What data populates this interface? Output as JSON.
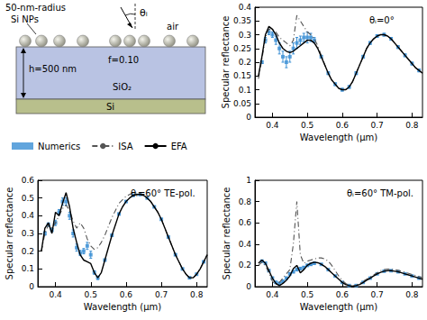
{
  "diagram": {
    "np_label": "50-nm-radius",
    "np_label2": "Si NPs",
    "angle": "θᵢ",
    "medium": "air",
    "thickness": "h=500 nm",
    "fill_fraction": "f=0.10",
    "layer": "SiO₂",
    "substrate": "Si"
  },
  "chart_data": [
    {
      "type": "line",
      "title": "θᵢ=0°",
      "xlabel": "Wavelength (μm)",
      "ylabel": "Specular reflectance",
      "legend": "left",
      "grid": false,
      "x": [
        0.36,
        0.37,
        0.38,
        0.39,
        0.4,
        0.41,
        0.42,
        0.43,
        0.44,
        0.45,
        0.46,
        0.47,
        0.48,
        0.49,
        0.5,
        0.51,
        0.52,
        0.53,
        0.54,
        0.55,
        0.56,
        0.57,
        0.58,
        0.59,
        0.6,
        0.61,
        0.62,
        0.63,
        0.64,
        0.65,
        0.66,
        0.67,
        0.68,
        0.69,
        0.7,
        0.71,
        0.72,
        0.73,
        0.74,
        0.75,
        0.76,
        0.77,
        0.78,
        0.79,
        0.8,
        0.81,
        0.82,
        0.83
      ],
      "xlim": [
        0.35,
        0.83
      ],
      "xticks": [
        0.4,
        0.5,
        0.6,
        0.7,
        0.8
      ],
      "ylim": [
        0,
        0.4
      ],
      "yticks": [
        0,
        0.05,
        0.1,
        0.15,
        0.2,
        0.25,
        0.3,
        0.35,
        0.4
      ],
      "series": [
        {
          "name": "Numerics",
          "type": "scatter",
          "marker": "square",
          "color": "#3a8fd4",
          "x": [
            0.37,
            0.38,
            0.39,
            0.4,
            0.41,
            0.42,
            0.43,
            0.44,
            0.45,
            0.46,
            0.47,
            0.48,
            0.49,
            0.5,
            0.51,
            0.52,
            0.54,
            0.56,
            0.58,
            0.6,
            0.62,
            0.64,
            0.66,
            0.68,
            0.7,
            0.72,
            0.74,
            0.76,
            0.78,
            0.8,
            0.82
          ],
          "values": [
            0.2,
            0.28,
            0.31,
            0.3,
            0.28,
            0.25,
            0.22,
            0.2,
            0.22,
            0.25,
            0.27,
            0.28,
            0.29,
            0.29,
            0.29,
            0.28,
            0.22,
            0.16,
            0.12,
            0.1,
            0.11,
            0.16,
            0.22,
            0.27,
            0.295,
            0.3,
            0.285,
            0.255,
            0.225,
            0.195,
            0.17
          ],
          "error": [
            0.005,
            0.01,
            0.01,
            0.01,
            0.015,
            0.02,
            0.02,
            0.02,
            0.02,
            0.02,
            0.02,
            0.015,
            0.015,
            0.02,
            0.015,
            0.01,
            0.005,
            0.005,
            0.005,
            0.005,
            0.005,
            0.005,
            0.005,
            0.005,
            0.005,
            0.005,
            0.005,
            0.005,
            0.005,
            0.005,
            0.005
          ]
        },
        {
          "name": "ISA",
          "type": "line",
          "line_style": "dashdot",
          "color": "#555555",
          "values": [
            0.14,
            0.21,
            0.29,
            0.32,
            0.32,
            0.31,
            0.29,
            0.28,
            0.27,
            0.26,
            0.28,
            0.37,
            0.35,
            0.33,
            0.31,
            0.3,
            0.285,
            0.26,
            0.225,
            0.19,
            0.16,
            0.135,
            0.12,
            0.105,
            0.1,
            0.1,
            0.11,
            0.13,
            0.16,
            0.19,
            0.22,
            0.25,
            0.27,
            0.285,
            0.295,
            0.3,
            0.3,
            0.295,
            0.285,
            0.27,
            0.255,
            0.24,
            0.225,
            0.21,
            0.195,
            0.18,
            0.17,
            0.16
          ]
        },
        {
          "name": "EFA",
          "type": "line",
          "line_style": "solid",
          "color": "#000000",
          "values": [
            0.15,
            0.22,
            0.3,
            0.33,
            0.32,
            0.3,
            0.27,
            0.25,
            0.24,
            0.235,
            0.24,
            0.25,
            0.26,
            0.27,
            0.28,
            0.28,
            0.27,
            0.25,
            0.22,
            0.19,
            0.16,
            0.135,
            0.12,
            0.105,
            0.1,
            0.1,
            0.11,
            0.13,
            0.16,
            0.19,
            0.22,
            0.25,
            0.27,
            0.285,
            0.295,
            0.3,
            0.3,
            0.295,
            0.285,
            0.27,
            0.255,
            0.24,
            0.225,
            0.21,
            0.195,
            0.18,
            0.17,
            0.16
          ]
        }
      ]
    },
    {
      "type": "line",
      "title": "θᵢ=60° TE-pol.",
      "xlabel": "Wavelength (μm)",
      "ylabel": "Specular reflectance",
      "grid": false,
      "x": [
        0.36,
        0.37,
        0.38,
        0.39,
        0.4,
        0.41,
        0.42,
        0.43,
        0.44,
        0.45,
        0.46,
        0.47,
        0.48,
        0.49,
        0.5,
        0.51,
        0.52,
        0.53,
        0.54,
        0.55,
        0.56,
        0.57,
        0.58,
        0.59,
        0.6,
        0.61,
        0.62,
        0.63,
        0.64,
        0.65,
        0.66,
        0.67,
        0.68,
        0.69,
        0.7,
        0.71,
        0.72,
        0.73,
        0.74,
        0.75,
        0.76,
        0.77,
        0.78,
        0.79,
        0.8,
        0.81,
        0.82,
        0.83
      ],
      "xlim": [
        0.35,
        0.83
      ],
      "xticks": [
        0.4,
        0.5,
        0.6,
        0.7,
        0.8
      ],
      "ylim": [
        0,
        0.6
      ],
      "yticks": [
        0,
        0.1,
        0.2,
        0.3,
        0.4,
        0.5,
        0.6
      ],
      "series": [
        {
          "name": "Numerics",
          "type": "scatter",
          "marker": "square",
          "color": "#3a8fd4",
          "x": [
            0.37,
            0.38,
            0.39,
            0.4,
            0.41,
            0.42,
            0.43,
            0.44,
            0.45,
            0.46,
            0.47,
            0.48,
            0.49,
            0.5,
            0.51,
            0.52,
            0.54,
            0.56,
            0.58,
            0.6,
            0.62,
            0.64,
            0.66,
            0.68,
            0.7,
            0.72,
            0.74,
            0.76,
            0.78,
            0.8,
            0.82
          ],
          "values": [
            0.3,
            0.35,
            0.32,
            0.36,
            0.42,
            0.48,
            0.48,
            0.4,
            0.3,
            0.22,
            0.19,
            0.2,
            0.23,
            0.18,
            0.08,
            0.05,
            0.15,
            0.29,
            0.41,
            0.48,
            0.515,
            0.52,
            0.5,
            0.45,
            0.38,
            0.28,
            0.18,
            0.1,
            0.05,
            0.07,
            0.14
          ],
          "error": [
            0.01,
            0.01,
            0.01,
            0.015,
            0.015,
            0.02,
            0.02,
            0.02,
            0.02,
            0.02,
            0.015,
            0.015,
            0.02,
            0.02,
            0.01,
            0.01,
            0.005,
            0.005,
            0.005,
            0.005,
            0.005,
            0.005,
            0.005,
            0.005,
            0.005,
            0.005,
            0.005,
            0.005,
            0.005,
            0.005,
            0.005
          ]
        },
        {
          "name": "ISA",
          "type": "line",
          "line_style": "dashdot",
          "color": "#555555",
          "values": [
            0.2,
            0.3,
            0.35,
            0.33,
            0.36,
            0.4,
            0.44,
            0.46,
            0.43,
            0.37,
            0.33,
            0.36,
            0.33,
            0.27,
            0.23,
            0.21,
            0.22,
            0.25,
            0.29,
            0.34,
            0.39,
            0.43,
            0.47,
            0.49,
            0.51,
            0.52,
            0.53,
            0.53,
            0.525,
            0.515,
            0.5,
            0.48,
            0.45,
            0.42,
            0.38,
            0.33,
            0.28,
            0.23,
            0.18,
            0.14,
            0.1,
            0.07,
            0.05,
            0.05,
            0.07,
            0.1,
            0.14,
            0.18
          ]
        },
        {
          "name": "EFA",
          "type": "line",
          "line_style": "solid",
          "color": "#000000",
          "values": [
            0.2,
            0.33,
            0.36,
            0.3,
            0.42,
            0.4,
            0.47,
            0.53,
            0.45,
            0.33,
            0.25,
            0.18,
            0.15,
            0.14,
            0.13,
            0.08,
            0.05,
            0.08,
            0.15,
            0.22,
            0.29,
            0.35,
            0.41,
            0.45,
            0.48,
            0.5,
            0.515,
            0.52,
            0.52,
            0.515,
            0.5,
            0.48,
            0.45,
            0.42,
            0.38,
            0.33,
            0.28,
            0.23,
            0.18,
            0.14,
            0.1,
            0.07,
            0.05,
            0.05,
            0.07,
            0.1,
            0.14,
            0.18
          ]
        }
      ]
    },
    {
      "type": "line",
      "title": "θᵢ=60° TM-pol.",
      "xlabel": "Wavelength (μm)",
      "ylabel": "Specular reflectance",
      "grid": false,
      "x": [
        0.36,
        0.37,
        0.38,
        0.39,
        0.4,
        0.41,
        0.42,
        0.43,
        0.44,
        0.45,
        0.46,
        0.47,
        0.48,
        0.49,
        0.5,
        0.51,
        0.52,
        0.53,
        0.54,
        0.55,
        0.56,
        0.57,
        0.58,
        0.59,
        0.6,
        0.61,
        0.62,
        0.63,
        0.64,
        0.65,
        0.66,
        0.67,
        0.68,
        0.69,
        0.7,
        0.71,
        0.72,
        0.73,
        0.74,
        0.75,
        0.76,
        0.77,
        0.78,
        0.79,
        0.8,
        0.81,
        0.82,
        0.83
      ],
      "xlim": [
        0.35,
        0.83
      ],
      "xticks": [
        0.4,
        0.5,
        0.6,
        0.7,
        0.8
      ],
      "ylim": [
        0,
        1
      ],
      "yticks": [
        0,
        0.2,
        0.4,
        0.6,
        0.8,
        1
      ],
      "series": [
        {
          "name": "Numerics",
          "type": "scatter",
          "marker": "square",
          "color": "#3a8fd4",
          "x": [
            0.37,
            0.38,
            0.39,
            0.4,
            0.41,
            0.42,
            0.43,
            0.44,
            0.45,
            0.46,
            0.47,
            0.48,
            0.49,
            0.5,
            0.51,
            0.52,
            0.54,
            0.56,
            0.58,
            0.6,
            0.62,
            0.64,
            0.66,
            0.68,
            0.7,
            0.72,
            0.74,
            0.76,
            0.78,
            0.8,
            0.82
          ],
          "values": [
            0.24,
            0.22,
            0.15,
            0.08,
            0.04,
            0.03,
            0.05,
            0.08,
            0.12,
            0.14,
            0.16,
            0.17,
            0.18,
            0.2,
            0.21,
            0.22,
            0.21,
            0.16,
            0.1,
            0.04,
            0.01,
            0.01,
            0.04,
            0.08,
            0.12,
            0.145,
            0.15,
            0.14,
            0.12,
            0.1,
            0.08
          ],
          "error": [
            0.01,
            0.01,
            0.01,
            0.01,
            0.01,
            0.01,
            0.01,
            0.01,
            0.01,
            0.01,
            0.01,
            0.01,
            0.01,
            0.01,
            0.01,
            0.01,
            0.005,
            0.005,
            0.005,
            0.005,
            0.005,
            0.005,
            0.005,
            0.005,
            0.005,
            0.005,
            0.005,
            0.005,
            0.005,
            0.005,
            0.005
          ]
        },
        {
          "name": "ISA",
          "type": "line",
          "line_style": "dashdot",
          "color": "#555555",
          "values": [
            0.2,
            0.23,
            0.2,
            0.13,
            0.05,
            0.02,
            0.04,
            0.08,
            0.12,
            0.16,
            0.4,
            0.8,
            0.3,
            0.22,
            0.24,
            0.25,
            0.26,
            0.27,
            0.27,
            0.26,
            0.24,
            0.2,
            0.15,
            0.1,
            0.06,
            0.03,
            0.01,
            0.005,
            0.01,
            0.03,
            0.05,
            0.07,
            0.09,
            0.11,
            0.13,
            0.15,
            0.16,
            0.165,
            0.165,
            0.16,
            0.155,
            0.145,
            0.135,
            0.125,
            0.115,
            0.105,
            0.095,
            0.085
          ]
        },
        {
          "name": "EFA",
          "type": "line",
          "line_style": "solid",
          "color": "#000000",
          "values": [
            0.22,
            0.25,
            0.22,
            0.15,
            0.08,
            0.03,
            0.01,
            0.03,
            0.06,
            0.1,
            0.17,
            0.2,
            0.13,
            0.16,
            0.2,
            0.22,
            0.23,
            0.225,
            0.21,
            0.19,
            0.16,
            0.13,
            0.1,
            0.07,
            0.04,
            0.02,
            0.01,
            0.005,
            0.01,
            0.02,
            0.04,
            0.06,
            0.08,
            0.1,
            0.12,
            0.135,
            0.145,
            0.15,
            0.15,
            0.145,
            0.14,
            0.13,
            0.12,
            0.11,
            0.1,
            0.09,
            0.08,
            0.07
          ]
        }
      ]
    }
  ]
}
